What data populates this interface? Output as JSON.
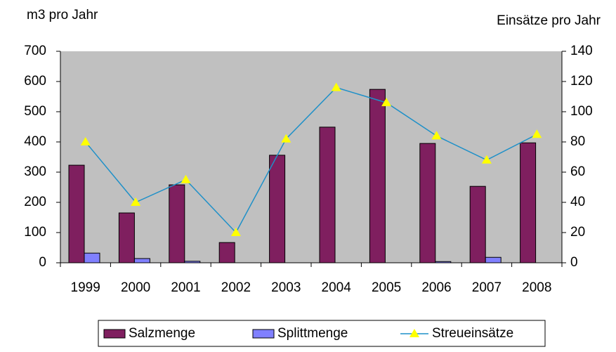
{
  "chart_data": {
    "type": "bar",
    "y_label": "m3 pro Jahr",
    "y2_label": "Einsätze pro Jahr",
    "categories": [
      "1999",
      "2000",
      "2001",
      "2002",
      "2003",
      "2004",
      "2005",
      "2006",
      "2007",
      "2008"
    ],
    "series": [
      {
        "name": "Salzmenge",
        "type": "bar",
        "color": "#7f1f5f",
        "values": [
          323,
          165,
          258,
          67,
          356,
          449,
          574,
          395,
          253,
          397
        ]
      },
      {
        "name": "Splittmenge",
        "type": "bar",
        "color": "#8080ff",
        "values": [
          32,
          14,
          5,
          0,
          0,
          0,
          0,
          4,
          18,
          0
        ]
      },
      {
        "name": "Streueinsätze",
        "type": "line",
        "axis": "y2",
        "color": "#1e90c8",
        "marker_color": "#ffff00",
        "values": [
          80,
          40,
          55,
          20,
          82,
          116,
          106,
          84,
          68,
          85
        ]
      }
    ],
    "ylim": [
      0,
      700
    ],
    "yticks": [
      0,
      100,
      200,
      300,
      400,
      500,
      600,
      700
    ],
    "y2lim": [
      0,
      140
    ],
    "y2ticks": [
      0,
      20,
      40,
      60,
      80,
      100,
      120,
      140
    ],
    "grid": false,
    "legend": "bottom",
    "plot_background": "#c0c0c0"
  }
}
